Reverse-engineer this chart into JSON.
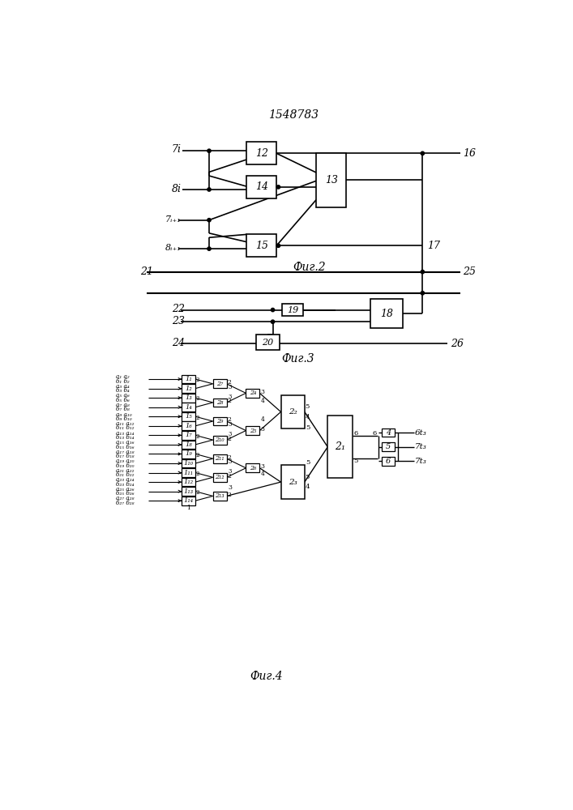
{
  "title": "1548783",
  "fig2_label": "Фиг.2",
  "fig3_label": "Фиг.3",
  "fig4_label": "Фиг.4",
  "bg_color": "#ffffff"
}
